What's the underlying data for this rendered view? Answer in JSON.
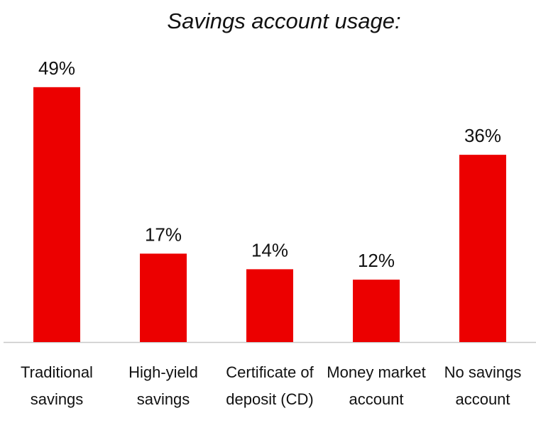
{
  "chart_data": {
    "type": "bar",
    "title": "Savings account usage:",
    "categories": [
      "Traditional savings",
      "High-yield savings",
      "Certificate of deposit (CD)",
      "Money market account",
      "No savings account"
    ],
    "values": [
      49,
      17,
      14,
      12,
      36
    ],
    "value_labels": [
      "49%",
      "17%",
      "14%",
      "12%",
      "36%"
    ],
    "color": "#ec0000"
  }
}
